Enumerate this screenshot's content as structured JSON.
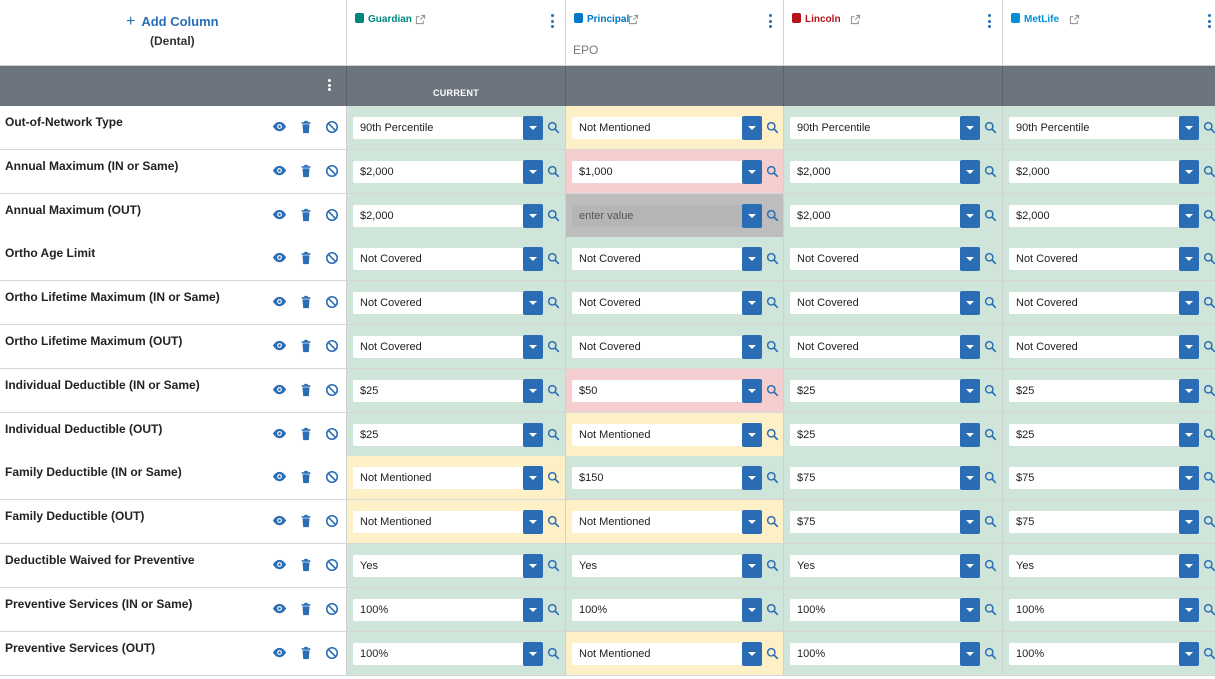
{
  "header": {
    "add_column_label": "Add Column",
    "add_column_sub": "(Dental)"
  },
  "carriers": [
    {
      "name": "Guardian",
      "plan_type": "",
      "bar_label": "CURRENT",
      "logo_color": "#00857c"
    },
    {
      "name": "Principal",
      "plan_type": "EPO",
      "bar_label": "",
      "logo_color": "#0077c8"
    },
    {
      "name": "Lincoln",
      "plan_type": "",
      "bar_label": "",
      "logo_color": "#b5121b"
    },
    {
      "name": "MetLife",
      "plan_type": "",
      "bar_label": "",
      "logo_color": "#0090da"
    }
  ],
  "colors": {
    "accent": "#2a6db5",
    "green": "#cfe5da",
    "yellow": "#fdf0c7",
    "red": "#f5cfcf",
    "gray": "#bdbdbd",
    "bar": "#6c757d"
  },
  "placeholder": "enter value",
  "rows": [
    {
      "label": "Out-of-Network Type",
      "cells": [
        {
          "value": "90th Percentile",
          "status": "green"
        },
        {
          "value": "Not Mentioned",
          "status": "yellow"
        },
        {
          "value": "90th Percentile",
          "status": "green"
        },
        {
          "value": "90th Percentile",
          "status": "green"
        }
      ]
    },
    {
      "label": "Annual Maximum (IN or Same)",
      "cells": [
        {
          "value": "$2,000",
          "status": "green"
        },
        {
          "value": "$1,000",
          "status": "red"
        },
        {
          "value": "$2,000",
          "status": "green"
        },
        {
          "value": "$2,000",
          "status": "green"
        }
      ]
    },
    {
      "label": "Annual Maximum (OUT)",
      "cells": [
        {
          "value": "$2,000",
          "status": "green"
        },
        {
          "value": "",
          "status": "gray"
        },
        {
          "value": "$2,000",
          "status": "green"
        },
        {
          "value": "$2,000",
          "status": "green"
        }
      ]
    },
    {
      "label": "Ortho Age Limit",
      "cells": [
        {
          "value": "Not Covered",
          "status": "green"
        },
        {
          "value": "Not Covered",
          "status": "green"
        },
        {
          "value": "Not Covered",
          "status": "green"
        },
        {
          "value": "Not Covered",
          "status": "green"
        }
      ]
    },
    {
      "label": "Ortho Lifetime Maximum (IN or Same)",
      "cells": [
        {
          "value": "Not Covered",
          "status": "green"
        },
        {
          "value": "Not Covered",
          "status": "green"
        },
        {
          "value": "Not Covered",
          "status": "green"
        },
        {
          "value": "Not Covered",
          "status": "green"
        }
      ]
    },
    {
      "label": "Ortho Lifetime Maximum (OUT)",
      "cells": [
        {
          "value": "Not Covered",
          "status": "green"
        },
        {
          "value": "Not Covered",
          "status": "green"
        },
        {
          "value": "Not Covered",
          "status": "green"
        },
        {
          "value": "Not Covered",
          "status": "green"
        }
      ]
    },
    {
      "label": "Individual Deductible (IN or Same)",
      "cells": [
        {
          "value": "$25",
          "status": "green"
        },
        {
          "value": "$50",
          "status": "red"
        },
        {
          "value": "$25",
          "status": "green"
        },
        {
          "value": "$25",
          "status": "green"
        }
      ]
    },
    {
      "label": "Individual Deductible (OUT)",
      "cells": [
        {
          "value": "$25",
          "status": "green"
        },
        {
          "value": "Not Mentioned",
          "status": "yellow"
        },
        {
          "value": "$25",
          "status": "green"
        },
        {
          "value": "$25",
          "status": "green"
        }
      ]
    },
    {
      "label": "Family Deductible (IN or Same)",
      "cells": [
        {
          "value": "Not Mentioned",
          "status": "yellow"
        },
        {
          "value": "$150",
          "status": "green"
        },
        {
          "value": "$75",
          "status": "green"
        },
        {
          "value": "$75",
          "status": "green"
        }
      ]
    },
    {
      "label": "Family Deductible (OUT)",
      "cells": [
        {
          "value": "Not Mentioned",
          "status": "yellow"
        },
        {
          "value": "Not Mentioned",
          "status": "yellow"
        },
        {
          "value": "$75",
          "status": "green"
        },
        {
          "value": "$75",
          "status": "green"
        }
      ]
    },
    {
      "label": "Deductible Waived for Preventive",
      "cells": [
        {
          "value": "Yes",
          "status": "green"
        },
        {
          "value": "Yes",
          "status": "green"
        },
        {
          "value": "Yes",
          "status": "green"
        },
        {
          "value": "Yes",
          "status": "green"
        }
      ]
    },
    {
      "label": "Preventive Services (IN or Same)",
      "cells": [
        {
          "value": "100%",
          "status": "green"
        },
        {
          "value": "100%",
          "status": "green"
        },
        {
          "value": "100%",
          "status": "green"
        },
        {
          "value": "100%",
          "status": "green"
        }
      ]
    },
    {
      "label": "Preventive Services (OUT)",
      "cells": [
        {
          "value": "100%",
          "status": "green"
        },
        {
          "value": "Not Mentioned",
          "status": "yellow"
        },
        {
          "value": "100%",
          "status": "green"
        },
        {
          "value": "100%",
          "status": "green"
        }
      ]
    }
  ]
}
